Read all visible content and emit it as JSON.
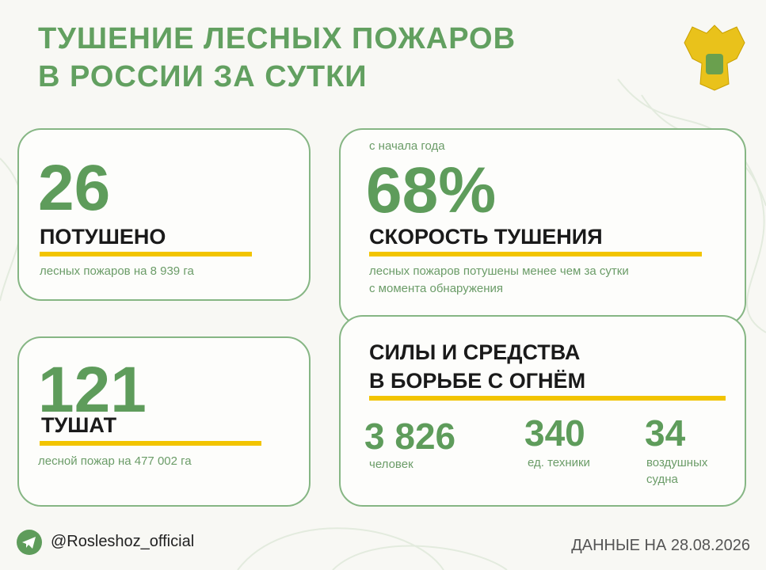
{
  "header": {
    "title_lines": [
      "ТУШЕНИЕ ЛЕСНЫХ ПОЖАРОВ",
      "В РОССИИ ЗА СУТКИ"
    ]
  },
  "cards": [
    {
      "number": "26",
      "label": "ПОТУШЕНО",
      "note": "лесных пожаров на 8 939 га"
    },
    {
      "number": "121",
      "label": "ТУШАТ",
      "note": "лесной пожар на 477 002 га"
    },
    {
      "prefix": "с начала года",
      "number": "68%",
      "label": "СКОРОСТЬ ТУШЕНИЯ",
      "note_lines": [
        "лесных пожаров потушены менее чем за сутки",
        "с момента обнаружения"
      ]
    }
  ],
  "resources": {
    "title_lines": [
      "СИЛЫ И СРЕДСТВА",
      "В БОРЬБЕ С ОГНЁМ"
    ],
    "items": [
      {
        "number": "3 826",
        "label": "человек"
      },
      {
        "number": "340",
        "label": "ед. техники"
      },
      {
        "number": "34",
        "label_lines": [
          "воздушных",
          "судна"
        ]
      }
    ]
  },
  "footer": {
    "handle": "@Rosleshoz_official",
    "date": "ДАННЫЕ НА 28.08.2026"
  }
}
